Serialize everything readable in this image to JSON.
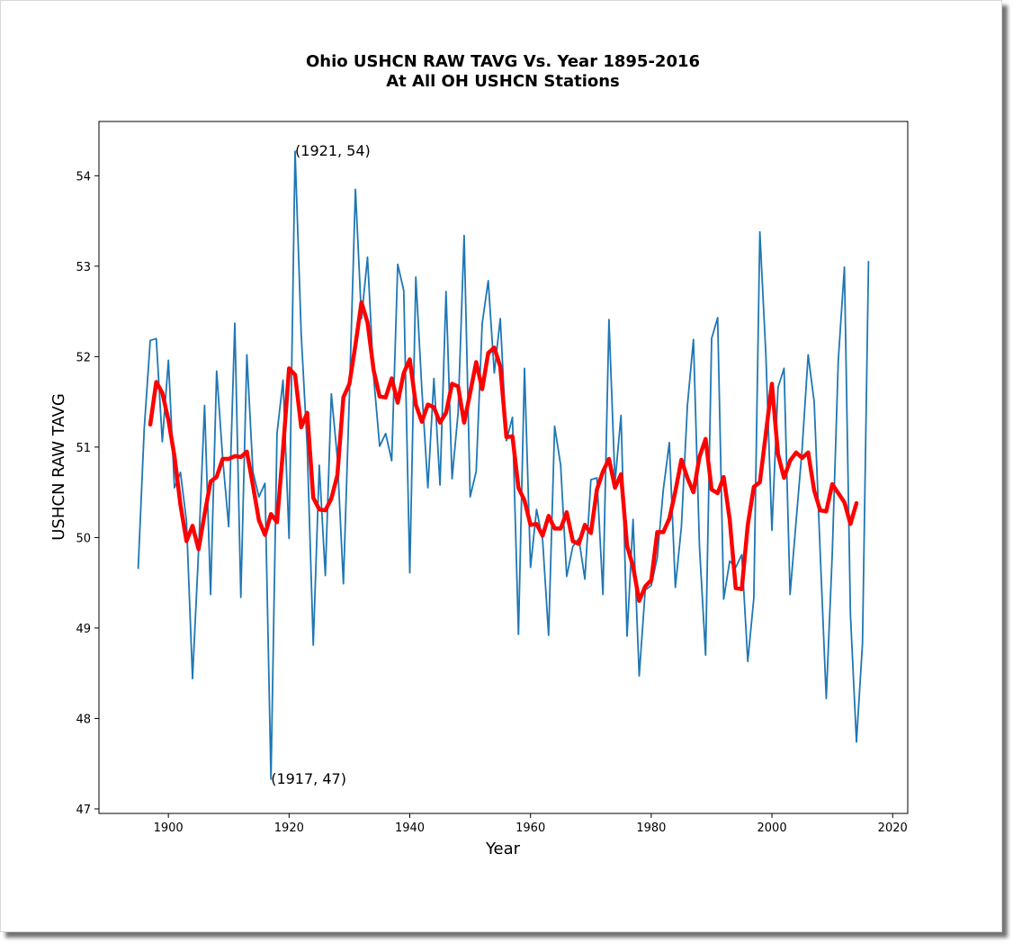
{
  "colors": {
    "raw_series": "#1f77b4",
    "smoothed_series": "#ff0000",
    "axes": "#000000",
    "background": "#ffffff"
  },
  "chart_data": {
    "type": "line",
    "title": "Ohio USHCN RAW TAVG Vs. Year 1895-2016",
    "subtitle": "At All OH USHCN Stations",
    "xlabel": "Year",
    "ylabel": "USHCN RAW TAVG",
    "xlim": [
      1888.5,
      2022.5
    ],
    "ylim": [
      46.95,
      54.6
    ],
    "xticks": [
      1900,
      1920,
      1940,
      1960,
      1980,
      2000,
      2020
    ],
    "yticks": [
      47,
      48,
      49,
      50,
      51,
      52,
      53,
      54
    ],
    "grid": false,
    "legend": "none",
    "annotations": [
      {
        "text": "(1921, 54)",
        "x": 1921,
        "y": 54.27
      },
      {
        "text": "(1917, 47)",
        "x": 1917,
        "y": 47.33
      }
    ],
    "series": [
      {
        "x": [
          1895,
          1896,
          1897,
          1898,
          1899,
          1900,
          1901,
          1902,
          1903,
          1904,
          1905,
          1906,
          1907,
          1908,
          1909,
          1910,
          1911,
          1912,
          1913,
          1914,
          1915,
          1916,
          1917,
          1918,
          1919,
          1920,
          1921,
          1922,
          1923,
          1924,
          1925,
          1926,
          1927,
          1928,
          1929,
          1930,
          1931,
          1932,
          1933,
          1934,
          1935,
          1936,
          1937,
          1938,
          1939,
          1940,
          1941,
          1942,
          1943,
          1944,
          1945,
          1946,
          1947,
          1948,
          1949,
          1950,
          1951,
          1952,
          1953,
          1954,
          1955,
          1956,
          1957,
          1958,
          1959,
          1960,
          1961,
          1962,
          1963,
          1964,
          1965,
          1966,
          1967,
          1968,
          1969,
          1970,
          1971,
          1972,
          1973,
          1974,
          1975,
          1976,
          1977,
          1978,
          1979,
          1980,
          1981,
          1982,
          1983,
          1984,
          1985,
          1986,
          1987,
          1988,
          1989,
          1990,
          1991,
          1992,
          1993,
          1994,
          1995,
          1996,
          1997,
          1998,
          1999,
          2000,
          2001,
          2002,
          2003,
          2004,
          2005,
          2006,
          2007,
          2008,
          2009,
          2010,
          2011,
          2012,
          2013,
          2014,
          2015,
          2016
        ],
        "y": [
          49.66,
          51.2,
          52.18,
          52.2,
          51.06,
          51.96,
          50.55,
          50.72,
          50.18,
          48.44,
          49.85,
          51.46,
          49.37,
          51.84,
          50.88,
          50.12,
          52.37,
          49.34,
          52.02,
          50.73,
          50.45,
          50.6,
          47.33,
          51.15,
          51.74,
          49.99,
          54.27,
          52.25,
          51.0,
          48.81,
          50.8,
          49.58,
          51.59,
          50.88,
          49.49,
          51.58,
          53.85,
          52.42,
          53.1,
          51.78,
          51.01,
          51.15,
          50.85,
          53.02,
          52.73,
          49.61,
          52.88,
          51.64,
          50.55,
          51.76,
          50.58,
          52.72,
          50.65,
          51.38,
          53.34,
          50.45,
          50.73,
          52.37,
          52.84,
          51.82,
          52.42,
          51.07,
          51.33,
          48.93,
          51.87,
          49.67,
          50.31,
          49.98,
          48.92,
          51.23,
          50.8,
          49.57,
          49.9,
          49.99,
          49.54,
          50.64,
          50.66,
          49.37,
          52.41,
          50.61,
          51.35,
          48.91,
          50.2,
          48.47,
          49.42,
          49.47,
          49.78,
          50.53,
          51.05,
          49.45,
          50.12,
          51.46,
          52.19,
          49.9,
          48.7,
          52.2,
          52.43,
          49.32,
          49.74,
          49.67,
          49.81,
          48.63,
          49.33,
          53.38,
          52.02,
          50.08,
          51.66,
          51.87,
          49.37,
          50.18,
          50.98,
          52.02,
          51.5,
          49.83,
          48.22,
          49.82,
          51.96,
          52.99,
          49.15,
          47.74,
          48.83,
          53.05
        ]
      },
      {
        "x": [
          1897,
          1898,
          1899,
          1900,
          1901,
          1902,
          1903,
          1904,
          1905,
          1906,
          1907,
          1908,
          1909,
          1910,
          1911,
          1912,
          1913,
          1914,
          1915,
          1916,
          1917,
          1918,
          1919,
          1920,
          1921,
          1922,
          1923,
          1924,
          1925,
          1926,
          1927,
          1928,
          1929,
          1930,
          1931,
          1932,
          1933,
          1934,
          1935,
          1936,
          1937,
          1938,
          1939,
          1940,
          1941,
          1942,
          1943,
          1944,
          1945,
          1946,
          1947,
          1948,
          1949,
          1950,
          1951,
          1952,
          1953,
          1954,
          1955,
          1956,
          1957,
          1958,
          1959,
          1960,
          1961,
          1962,
          1963,
          1964,
          1965,
          1966,
          1967,
          1968,
          1969,
          1970,
          1971,
          1972,
          1973,
          1974,
          1975,
          1976,
          1977,
          1978,
          1979,
          1980,
          1981,
          1982,
          1983,
          1984,
          1985,
          1986,
          1987,
          1988,
          1989,
          1990,
          1991,
          1992,
          1993,
          1994,
          1995,
          1996,
          1997,
          1998,
          1999,
          2000,
          2001,
          2002,
          2003,
          2004,
          2005,
          2006,
          2007,
          2008,
          2009,
          2010,
          2011,
          2012,
          2013,
          2014
        ],
        "y": [
          51.25,
          51.72,
          51.6,
          51.3,
          50.9,
          50.36,
          49.96,
          50.13,
          49.87,
          50.26,
          50.62,
          50.67,
          50.87,
          50.87,
          50.9,
          50.89,
          50.95,
          50.58,
          50.19,
          50.03,
          50.26,
          50.17,
          50.97,
          51.87,
          51.8,
          51.22,
          51.38,
          50.44,
          50.31,
          50.3,
          50.43,
          50.69,
          51.55,
          51.7,
          52.13,
          52.6,
          52.38,
          51.85,
          51.56,
          51.55,
          51.76,
          51.49,
          51.82,
          51.97,
          51.47,
          51.28,
          51.47,
          51.44,
          51.27,
          51.38,
          51.7,
          51.67,
          51.27,
          51.6,
          51.94,
          51.64,
          52.04,
          52.1,
          51.89,
          51.11,
          51.12,
          50.55,
          50.41,
          50.14,
          50.15,
          50.02,
          50.24,
          50.1,
          50.1,
          50.28,
          49.96,
          49.93,
          50.14,
          50.05,
          50.53,
          50.73,
          50.87,
          50.55,
          50.7,
          49.91,
          49.68,
          49.3,
          49.46,
          49.53,
          50.06,
          50.06,
          50.21,
          50.51,
          50.86,
          50.66,
          50.5,
          50.89,
          51.09,
          50.53,
          50.49,
          50.67,
          50.2,
          49.44,
          49.43,
          50.14,
          50.56,
          50.61,
          51.15,
          51.7,
          50.92,
          50.66,
          50.85,
          50.94,
          50.88,
          50.94,
          50.52,
          50.3,
          50.29,
          50.59,
          50.49,
          50.39,
          50.15,
          50.38
        ]
      }
    ]
  }
}
